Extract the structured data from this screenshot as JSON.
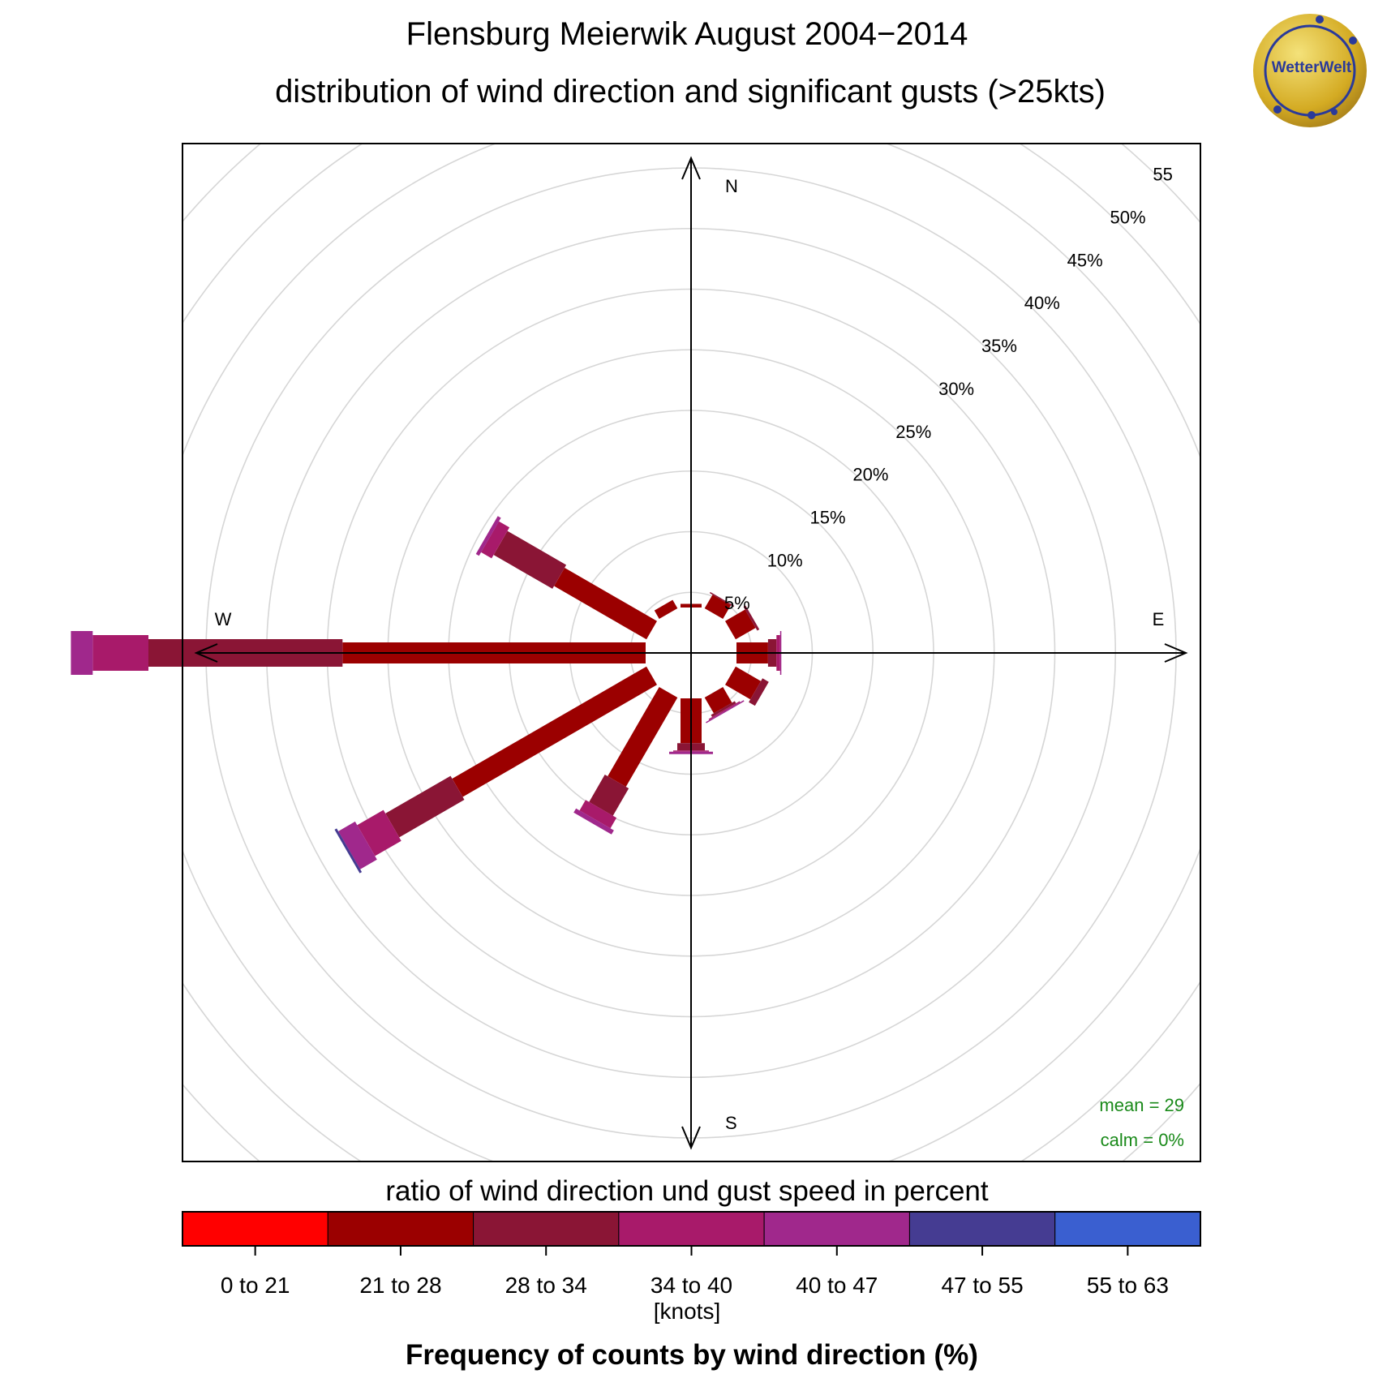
{
  "header": {
    "title": "Flensburg Meierwik August 2004−2014",
    "subtitle": "distribution of wind direction and significant gusts (>25kts)"
  },
  "logo": {
    "text": "WetterWelt",
    "ring_color": "#2a3a9a",
    "fill_color": "#d4b02a"
  },
  "chart_data": {
    "type": "wind-rose",
    "title": "Flensburg Meierwik August 2004−2014",
    "subtitle": "distribution of wind direction and significant gusts (>25kts)",
    "directions_deg": [
      0,
      30,
      60,
      90,
      120,
      150,
      180,
      210,
      240,
      270,
      300,
      330
    ],
    "compass_labels": [
      "N",
      "E",
      "S",
      "W"
    ],
    "radial_ticks": [
      5,
      10,
      15,
      20,
      25,
      30,
      35,
      40,
      45,
      50,
      55
    ],
    "radial_tick_labels": [
      "5%",
      "10%",
      "15%",
      "20%",
      "25%",
      "30%",
      "35%",
      "40%",
      "45%",
      "50%",
      "55"
    ],
    "speed_bins": [
      "0 to 21",
      "21 to 28",
      "28 to 34",
      "34 to 40",
      "40 to 47",
      "47 to 55",
      "55 to 63"
    ],
    "bin_colors": [
      "#ff0000",
      "#9b0000",
      "#8a1535",
      "#a81a6a",
      "#a0288c",
      "#453c92",
      "#3a5fd0"
    ],
    "series": [
      {
        "name": "0 to 21",
        "values": [
          0.0,
          0.0,
          0.0,
          0.0,
          0.0,
          0.0,
          0.0,
          0.0,
          0.0,
          0.0,
          0.0,
          0.0
        ]
      },
      {
        "name": "21 to 28",
        "values": [
          0.3,
          1.3,
          1.9,
          2.6,
          2.4,
          1.5,
          3.7,
          8.5,
          18.5,
          25.0,
          8.8,
          0.8
        ]
      },
      {
        "name": "28 to 34",
        "values": [
          0.0,
          0.1,
          0.2,
          0.7,
          0.6,
          0.2,
          0.6,
          2.6,
          6.2,
          16.0,
          5.6,
          0.0
        ]
      },
      {
        "name": "34 to 40",
        "values": [
          0.0,
          0.0,
          0.0,
          0.3,
          0.0,
          0.1,
          0.1,
          1.0,
          2.5,
          4.6,
          1.0,
          0.0
        ]
      },
      {
        "name": "40 to 47",
        "values": [
          0.0,
          0.0,
          0.0,
          0.1,
          0.0,
          0.1,
          0.2,
          0.4,
          1.6,
          1.8,
          0.3,
          0.0
        ]
      },
      {
        "name": "47 to 55",
        "values": [
          0.0,
          0.0,
          0.0,
          0.0,
          0.0,
          0.0,
          0.0,
          0.0,
          0.2,
          0.0,
          0.0,
          0.0
        ]
      },
      {
        "name": "55 to 63",
        "values": [
          0.0,
          0.0,
          0.0,
          0.0,
          0.0,
          0.0,
          0.0,
          0.0,
          0.0,
          0.0,
          0.0,
          0.0
        ]
      }
    ],
    "rlim": [
      0,
      55
    ],
    "grid": true,
    "legend_position": "bottom",
    "legend_title": "ratio of wind direction und gust speed in percent",
    "legend_unit": "[knots]",
    "xlabel": "Frequency of counts by wind direction (%)",
    "stats": {
      "mean": "mean = 29",
      "calm": "calm = 0%"
    }
  }
}
